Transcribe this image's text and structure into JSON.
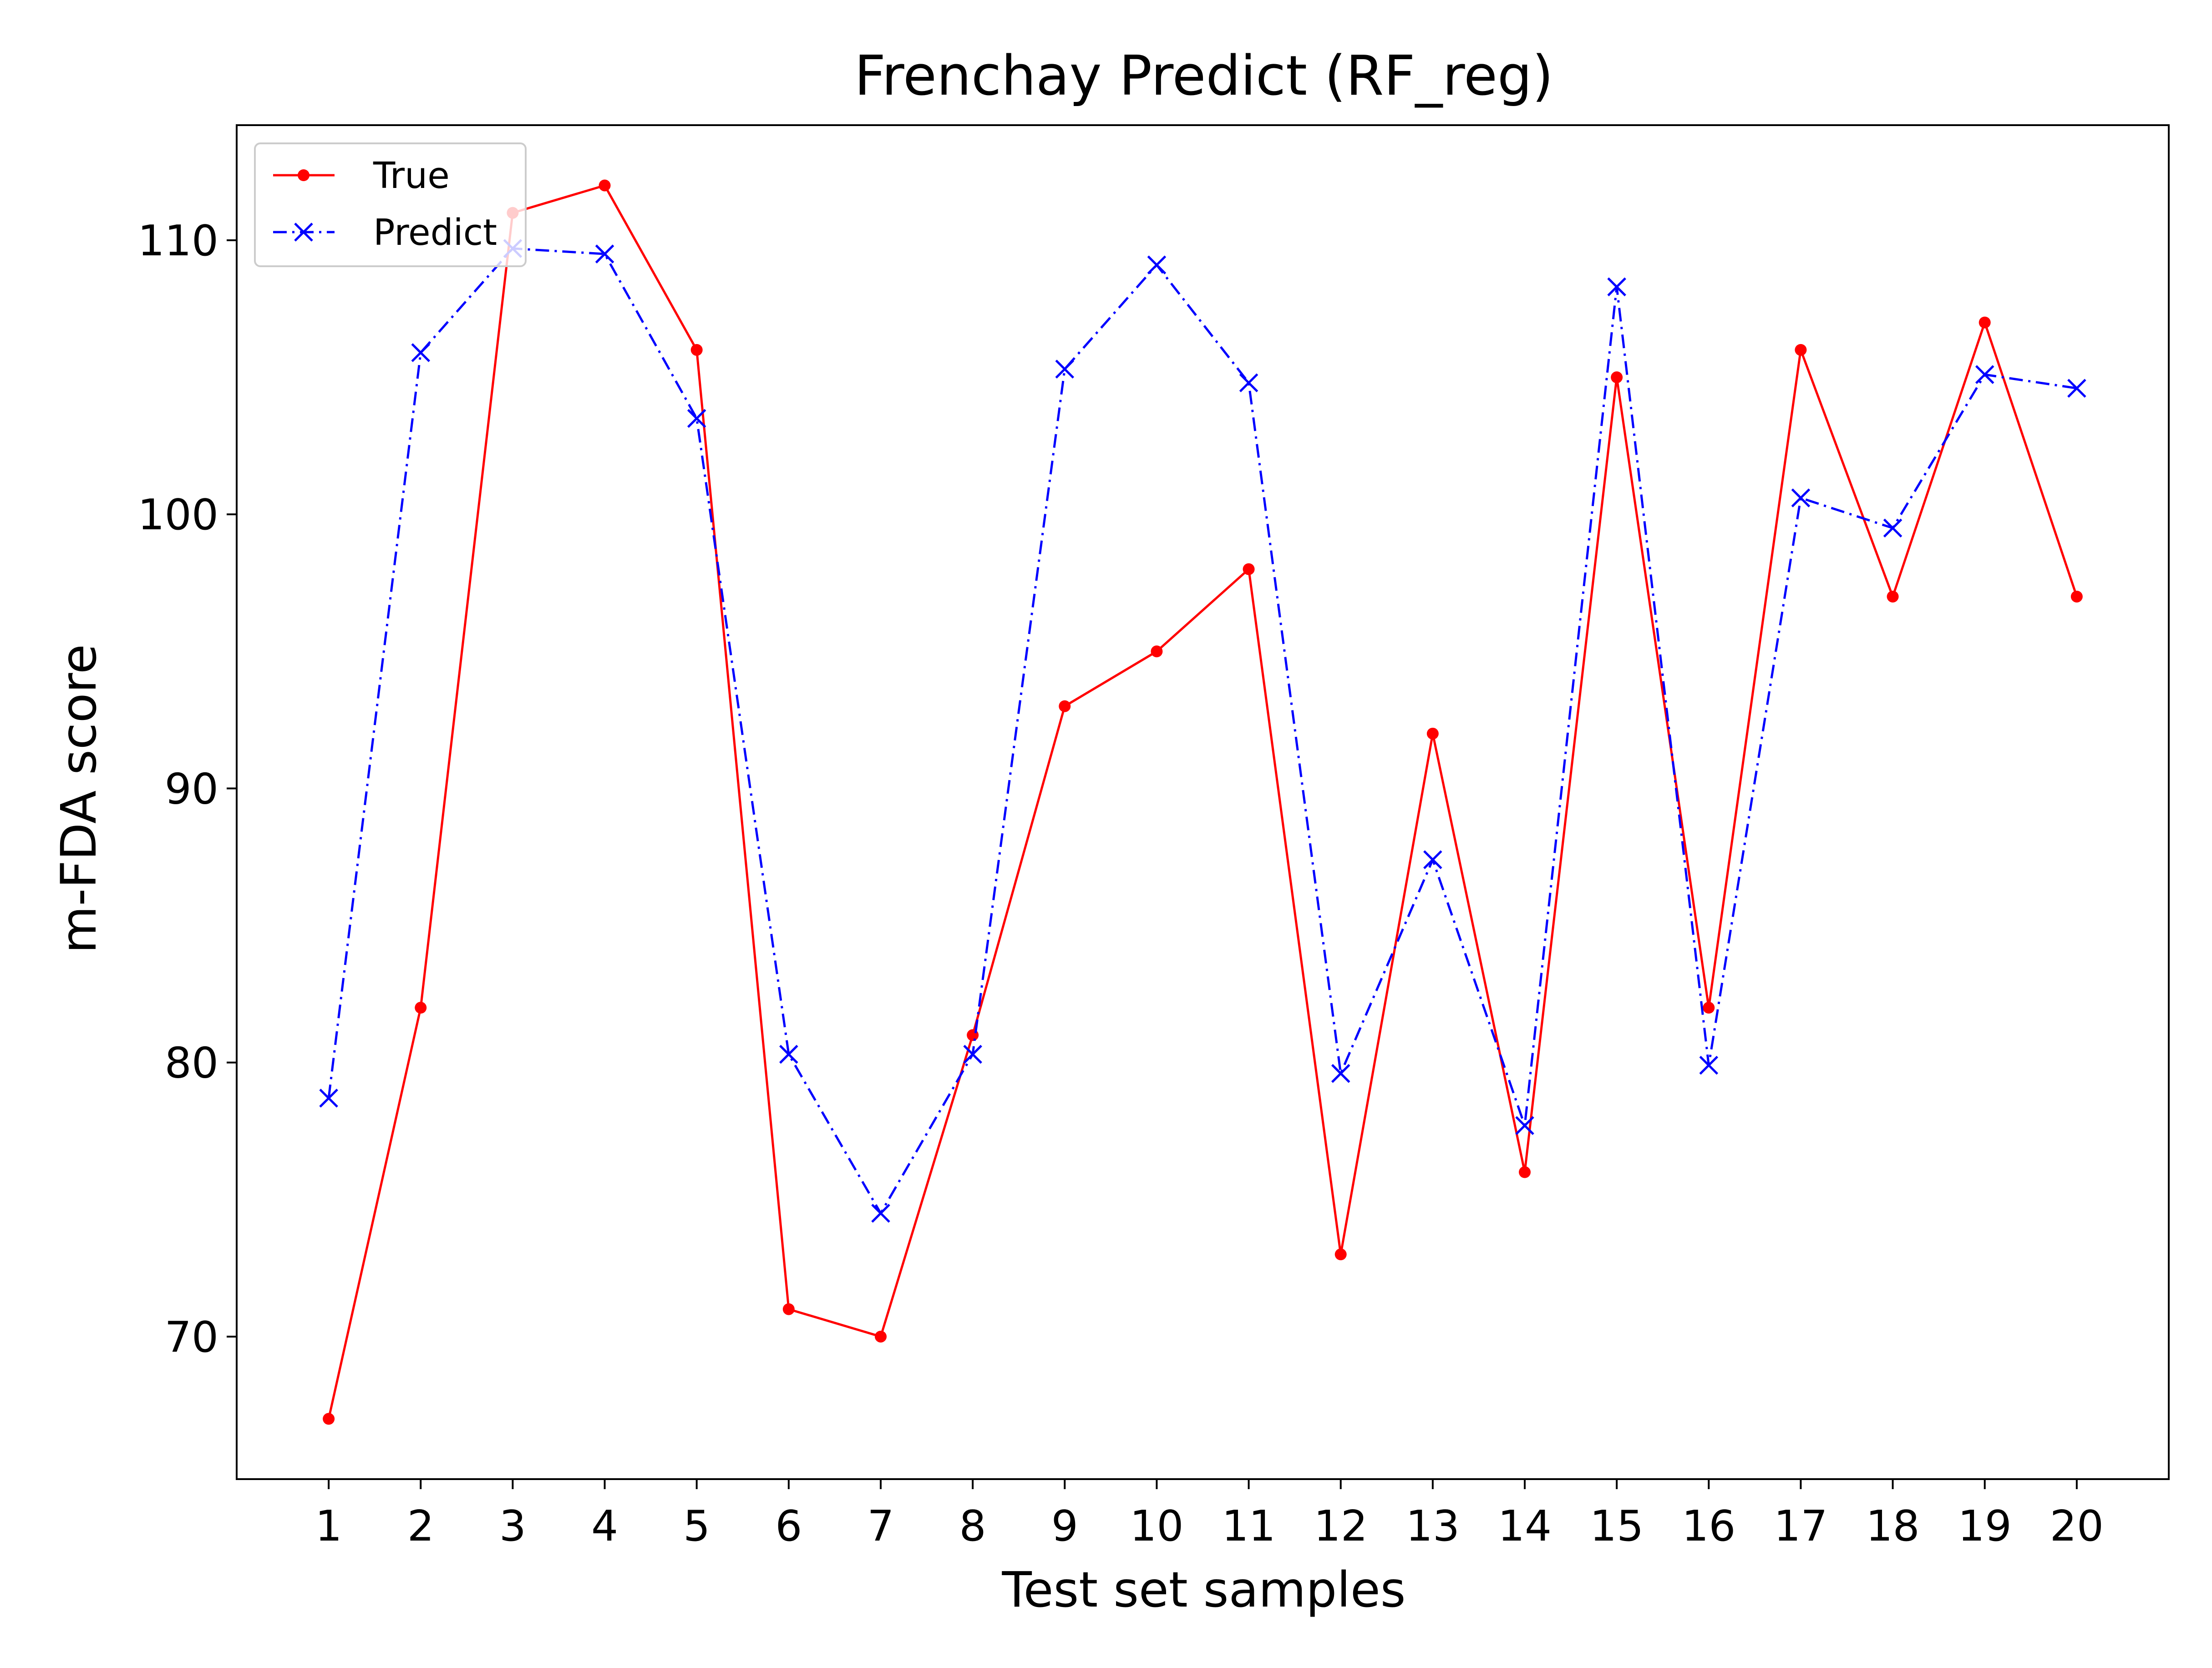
{
  "chart_data": {
    "type": "line",
    "title": "Frenchay Predict (RF_reg)",
    "xlabel": "Test set samples",
    "ylabel": "m-FDA score",
    "x": [
      1,
      2,
      3,
      4,
      5,
      6,
      7,
      8,
      9,
      10,
      11,
      12,
      13,
      14,
      15,
      16,
      17,
      18,
      19,
      20
    ],
    "x_tick_labels": [
      "1",
      "2",
      "3",
      "4",
      "5",
      "6",
      "7",
      "8",
      "9",
      "10",
      "11",
      "12",
      "13",
      "14",
      "15",
      "16",
      "17",
      "18",
      "19",
      "20"
    ],
    "y_ticks": [
      70,
      80,
      90,
      100,
      110
    ],
    "y_tick_labels": [
      "70",
      "80",
      "90",
      "100",
      "110"
    ],
    "xlim": [
      0,
      21
    ],
    "ylim": [
      64.8,
      114.2
    ],
    "grid": false,
    "legend_placement": "upper-left",
    "series": [
      {
        "name": "True",
        "color": "#ff0000",
        "line_style": "solid",
        "marker": "dot",
        "values": [
          67,
          82,
          111,
          112,
          106,
          71,
          70,
          81,
          93,
          95,
          98,
          73,
          92,
          76,
          105,
          82,
          106,
          97,
          107,
          97
        ]
      },
      {
        "name": "Predict",
        "color": "#0000ff",
        "line_style": "dash-dot",
        "marker": "x",
        "values": [
          78.7,
          105.9,
          109.7,
          109.5,
          103.5,
          80.3,
          74.5,
          80.3,
          105.3,
          109.1,
          104.8,
          79.6,
          87.4,
          77.7,
          108.3,
          79.9,
          100.6,
          99.5,
          105.1,
          104.6
        ]
      }
    ]
  }
}
